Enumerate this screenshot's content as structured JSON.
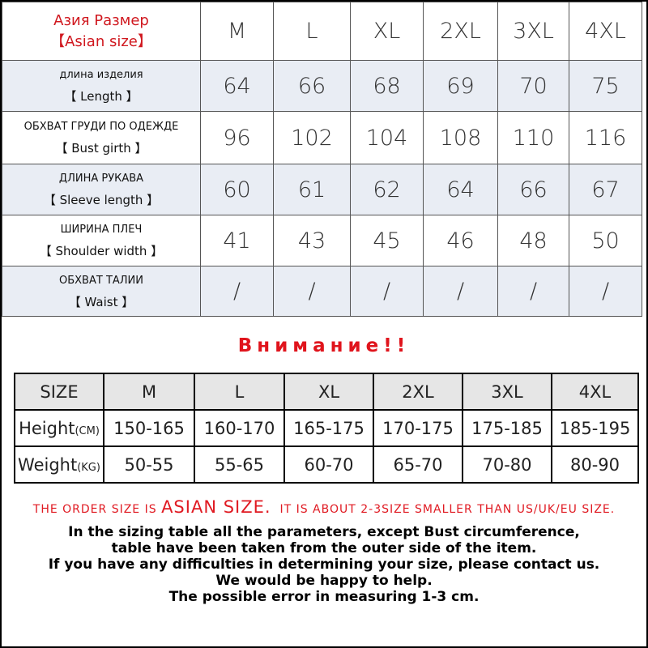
{
  "size_table": {
    "header": {
      "label": [
        "Азия Размер",
        "【Asian size】"
      ],
      "sizes": [
        "M",
        "L",
        "XL",
        "2XL",
        "3XL",
        "4XL"
      ]
    },
    "rows": [
      {
        "label": [
          "длина  изделия",
          "【 Length 】"
        ],
        "values": [
          64,
          66,
          68,
          69,
          70,
          75
        ]
      },
      {
        "label": [
          "ОБХВАТ ГРУДИ ПО ОДЕЖДЕ",
          "【  Bust girth  】"
        ],
        "values": [
          96,
          102,
          104,
          108,
          110,
          116
        ]
      },
      {
        "label": [
          "ДЛИНА  РУКАВА",
          "【 Sleeve  length 】"
        ],
        "values": [
          60,
          61,
          62,
          64,
          66,
          67
        ]
      },
      {
        "label": [
          "ШИРИНА  ПЛЕЧ",
          "【 Shoulder  width 】"
        ],
        "values": [
          41,
          43,
          45,
          46,
          48,
          50
        ]
      },
      {
        "label": [
          "ОБХВАТ  ТАЛИИ",
          "【 Waist 】"
        ],
        "values": [
          "/",
          "/",
          "/",
          "/",
          "/",
          "/"
        ]
      }
    ]
  },
  "attention": "Внимание!!",
  "body_table": {
    "header": {
      "label": "SIZE",
      "sizes": [
        "M",
        "L",
        "XL",
        "2XL",
        "3XL",
        "4XL"
      ]
    },
    "rows": [
      {
        "label": "Height",
        "unit": "(CM)",
        "values": [
          "150-165",
          "160-170",
          "165-175",
          "170-175",
          "175-185",
          "185-195"
        ]
      },
      {
        "label": "Weight",
        "unit": "(KG)",
        "values": [
          "50-55",
          "55-65",
          "60-70",
          "65-70",
          "70-80",
          "80-90"
        ]
      }
    ]
  },
  "notice": [
    "THE ORDER SIZE IS ",
    "ASIAN SIZE.",
    "  IT IS ABOUT 2-3SIZE SMALLER THAN US/UK/EU SIZE."
  ],
  "notes": [
    "In the sizing table all the parameters, except Bust circumference,",
    "table have been taken from the outer side of the item.",
    "If you have any difficulties in determining your size, please contact us.",
    "We would be happy to help.",
    "The possible error in measuring 1-3 cm."
  ]
}
